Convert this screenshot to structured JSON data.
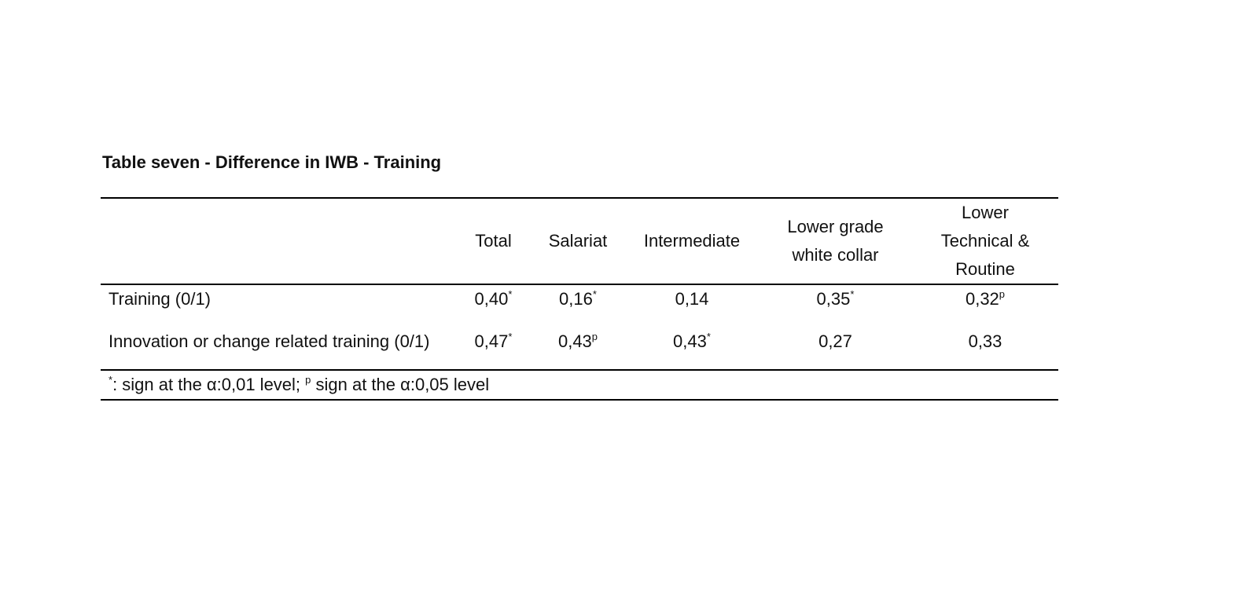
{
  "title": "Table seven - Difference in IWB - Training",
  "table": {
    "header": [
      [
        "Total"
      ],
      [
        "Salariat"
      ],
      [
        "Intermediate"
      ],
      [
        "Lower grade",
        "white collar"
      ],
      [
        "Lower",
        "Technical &",
        "Routine"
      ]
    ],
    "rows": [
      {
        "label": "Training (0/1)",
        "cells": [
          {
            "text": "0,40",
            "sup": "*"
          },
          {
            "text": "0,16",
            "sup": "*"
          },
          {
            "text": "0,14"
          },
          {
            "text": "0,35",
            "sup": "*"
          },
          {
            "text": "0,32",
            "sup": "p"
          }
        ]
      },
      {
        "label": "Innovation or change related training (0/1)",
        "cells": [
          {
            "text": "0,47",
            "sup": "*"
          },
          {
            "text": "0,43",
            "sup": "p"
          },
          {
            "text": "0,43",
            "sup": "*"
          },
          {
            "text": "0,27"
          },
          {
            "text": "0,33"
          }
        ]
      }
    ],
    "footnote": [
      {
        "sup": "*"
      },
      {
        "text": ": sign at the α:0,01 level; "
      },
      {
        "sup": "p"
      },
      {
        "text": " sign at the α:0,05 level"
      }
    ]
  }
}
